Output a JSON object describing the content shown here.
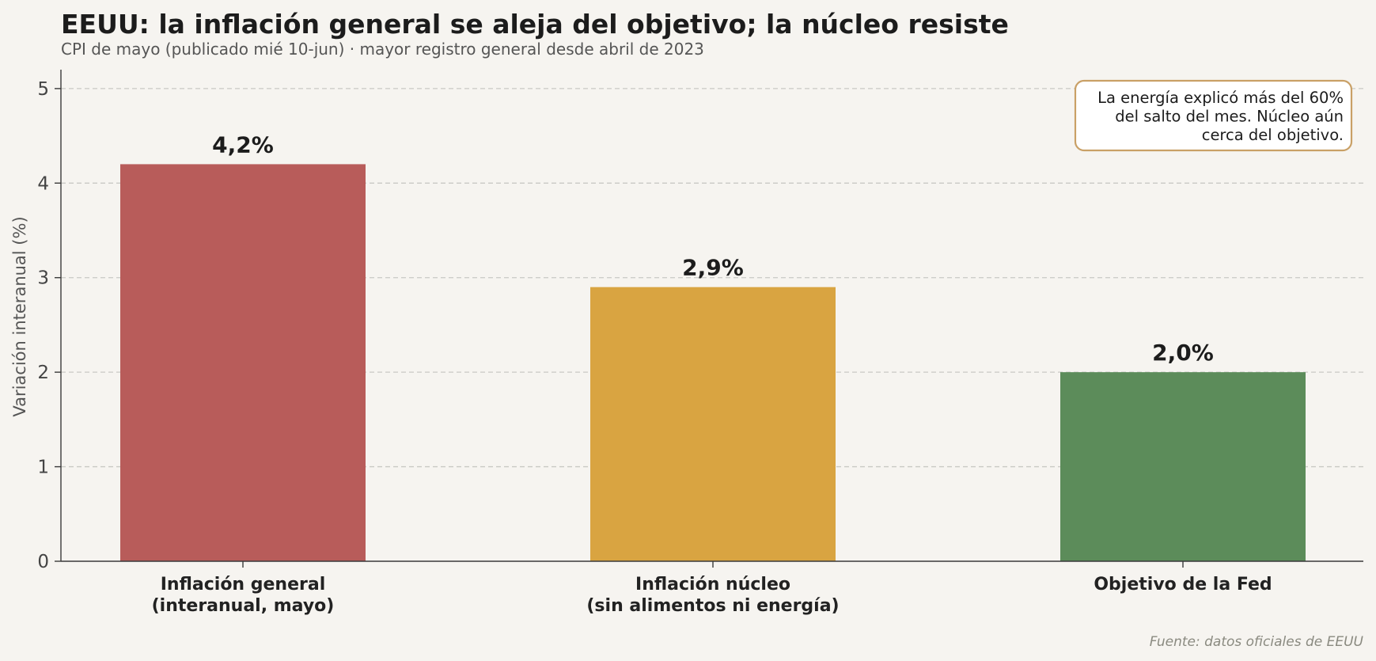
{
  "chart_data": {
    "type": "bar",
    "title": "EEUU: la inflación general se aleja del objetivo; la núcleo resiste",
    "subtitle": "CPI de mayo (publicado mié 10-jun) · mayor registro general desde abril de 2023",
    "xlabel": "",
    "ylabel": "Variación interanual (%)",
    "ylim": [
      0,
      5.2
    ],
    "yticks": [
      0,
      1,
      2,
      3,
      4,
      5
    ],
    "grid": true,
    "categories": [
      [
        "Inflación general",
        "(interanual, mayo)"
      ],
      [
        "Inflación núcleo",
        "(sin alimentos ni energía)"
      ],
      [
        "Objetivo de la Fed"
      ]
    ],
    "values": [
      4.2,
      2.9,
      2.0
    ],
    "value_labels": [
      "4,2%",
      "2,9%",
      "2,0%"
    ],
    "colors": [
      "#b85c5a",
      "#d9a441",
      "#5c8c5a"
    ],
    "annotation": {
      "lines": [
        "La energía explicó más del 60%",
        "del salto del mes. Núcleo aún",
        "cerca del objetivo."
      ],
      "placement": "top-right",
      "border_color": "#c9a066"
    },
    "source": "Fuente: datos oficiales de EEUU"
  }
}
